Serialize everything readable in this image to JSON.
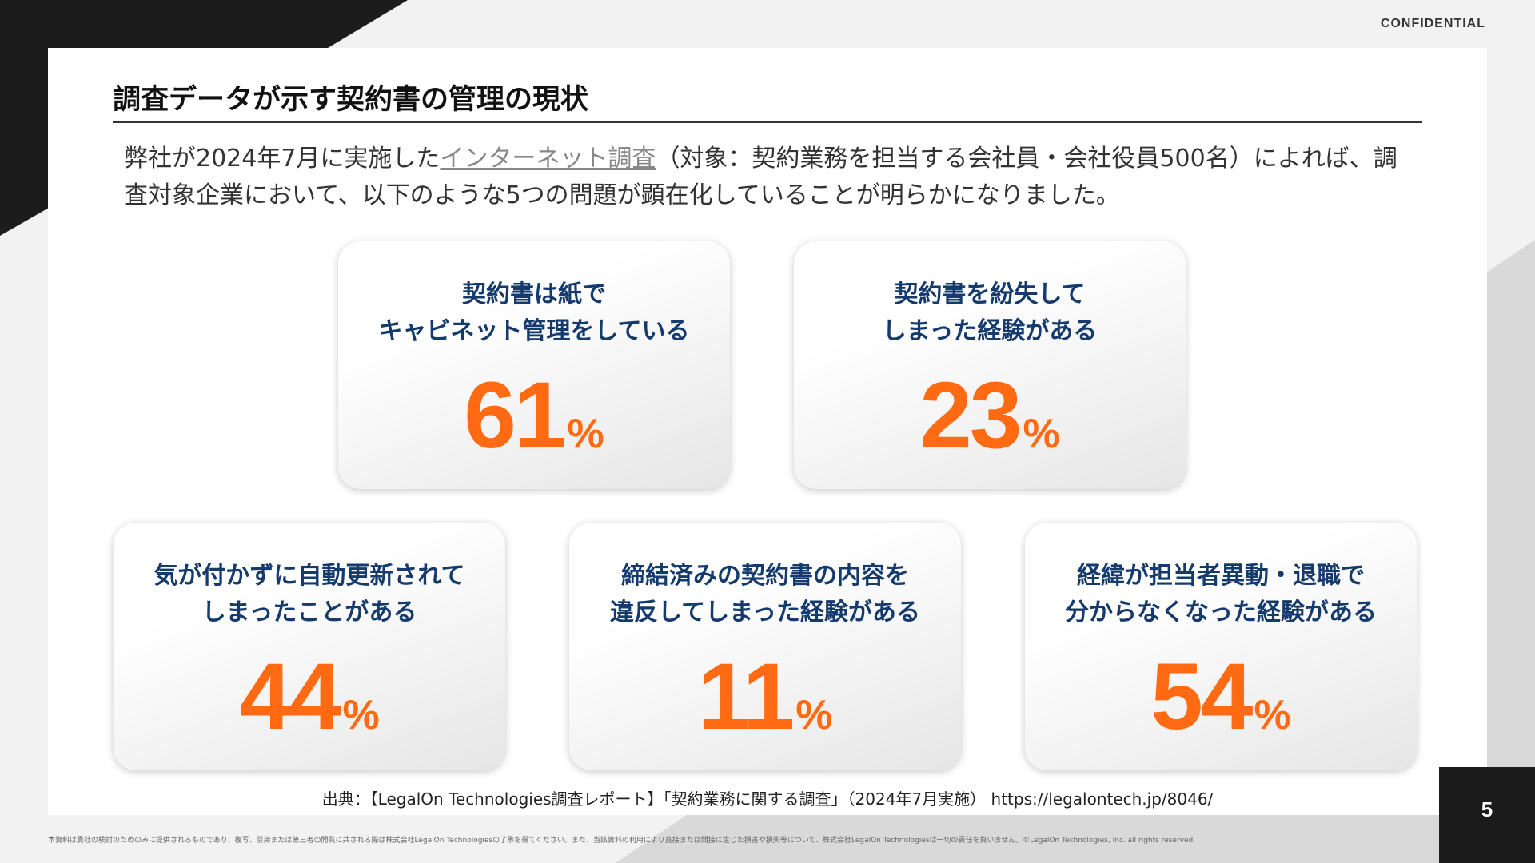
{
  "header": {
    "confidential": "CONFIDENTIAL"
  },
  "slide": {
    "title": "調査データが示す契約書の管理の現状",
    "intro_before": "弊社が2024年7月に実施した",
    "intro_link": "インターネット調査",
    "intro_after": "（対象：契約業務を担当する会社員・会社役員500名）によれば、調査対象企業において、以下のような5つの問題が顕在化していることが明らかになりました。"
  },
  "stats": [
    {
      "line1": "契約書は紙で",
      "line2": "キャビネット管理をしている",
      "value": "61",
      "unit": "%"
    },
    {
      "line1": "契約書を紛失して",
      "line2": "しまった経験がある",
      "value": "23",
      "unit": "%"
    },
    {
      "line1": "気が付かずに自動更新されて",
      "line2": "しまったことがある",
      "value": "44",
      "unit": "%"
    },
    {
      "line1": "締結済みの契約書の内容を",
      "line2": "違反してしまった経験がある",
      "value": "11",
      "unit": "%"
    },
    {
      "line1": "経緯が担当者異動・退職で",
      "line2": "分からなくなった経験がある",
      "value": "54",
      "unit": "%"
    }
  ],
  "footer": {
    "source": "出典：【LegalOn Technologies調査レポート】「契約業務に関する調査」（2024年7月実施） https://legalontech.jp/8046/",
    "disclaimer": "本資料は貴社の検討のためのみに提供されるものであり、複写、引用または第三者の閲覧に共される際は株式会社LegalOn Technologiesの了承を得てください。また、当該資料の利用により直接または間接に生じた損害や損失等について、株式会社LegalOn Technologiesは一切の責任を負いません。©LegalOn Technologies, Inc. all rights reserved.",
    "page_number": "5"
  },
  "colors": {
    "accent": "#ff6a13",
    "label": "#153b6e",
    "dark": "#1c1c1c"
  }
}
